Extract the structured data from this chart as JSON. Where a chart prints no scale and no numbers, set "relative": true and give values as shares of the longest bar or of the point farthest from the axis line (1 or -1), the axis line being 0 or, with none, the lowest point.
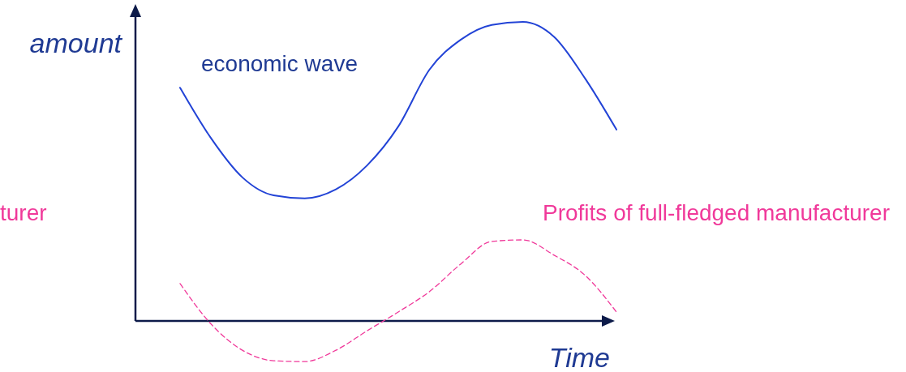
{
  "chart_data": {
    "type": "line",
    "relative": true,
    "xlabel": "Time",
    "ylabel": "amount",
    "categories": [
      null,
      null,
      null,
      null,
      null,
      null,
      null,
      null,
      null,
      null,
      null,
      null,
      null,
      null,
      null
    ],
    "series": [
      {
        "name": "economic wave",
        "color": "#2243d6",
        "line_style": "solid",
        "values": [
          0.78,
          0.61,
          0.48,
          0.42,
          0.41,
          0.44,
          0.52,
          0.65,
          0.84,
          0.94,
          0.99,
          1.0,
          0.95,
          0.81,
          0.64
        ]
      },
      {
        "name": "Profits of full-fledged manufacturer",
        "color": "#f0399a",
        "line_style": "dashed",
        "values": [
          0.125,
          -0.011,
          -0.098,
          -0.133,
          -0.136,
          -0.098,
          -0.033,
          0.03,
          0.098,
          0.19,
          0.266,
          0.271,
          0.22,
          0.152,
          0.03
        ]
      }
    ],
    "annotations": [
      "turer"
    ]
  }
}
